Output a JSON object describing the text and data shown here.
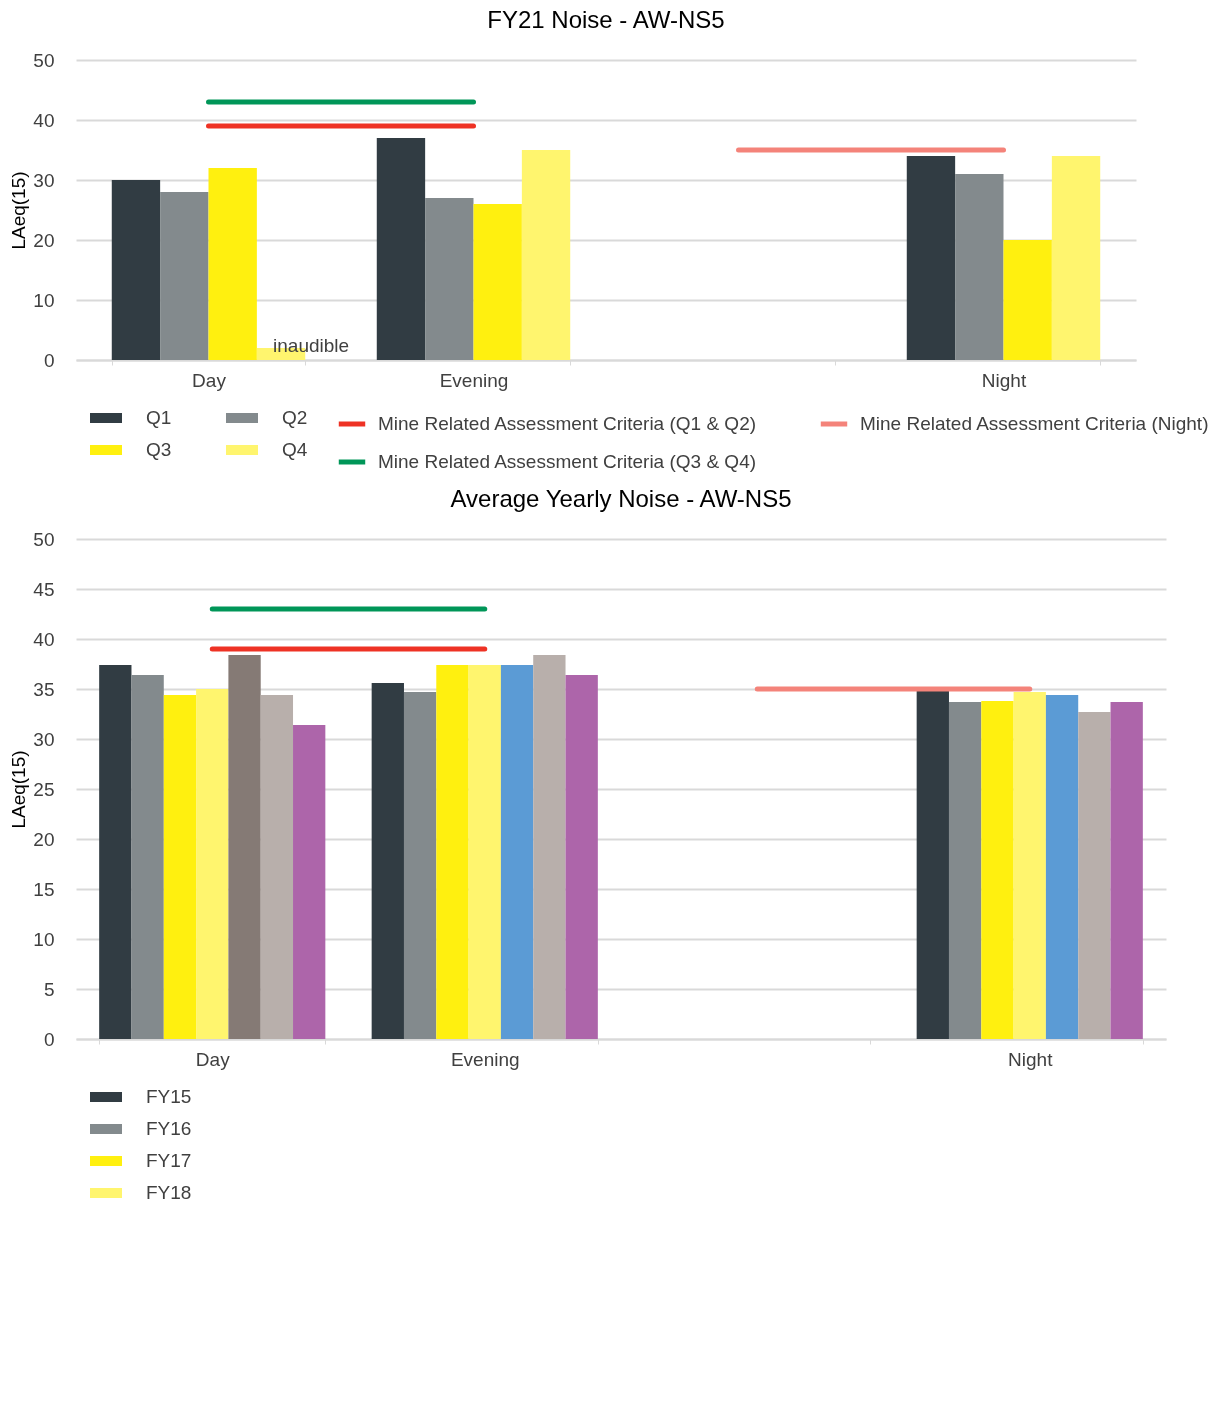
{
  "chart_data": [
    {
      "type": "bar",
      "title": "FY21 Noise - AW-NS5",
      "ylabel": "LAeq(15)",
      "categories": [
        "Day",
        "Evening",
        null,
        "Night"
      ],
      "ylim": [
        0,
        50
      ],
      "yticks": [
        0,
        10,
        20,
        30,
        40,
        50
      ],
      "grid": "y",
      "legend": "bottom",
      "series": [
        {
          "name": "Q1",
          "color": "#313c43",
          "values": [
            30,
            37,
            null,
            34
          ]
        },
        {
          "name": "Q2",
          "color": "#838a8d",
          "values": [
            28,
            27,
            null,
            31
          ]
        },
        {
          "name": "Q3",
          "color": "#fff00f",
          "values": [
            32,
            26,
            null,
            20
          ]
        },
        {
          "name": "Q4",
          "color": "#fff56e",
          "values": [
            2,
            35,
            null,
            34
          ],
          "value_labels": [
            "inaudible",
            null,
            null,
            null
          ]
        },
        {
          "name": "Mine Related Assessment Criteria (Q1 & Q2)",
          "type": "line",
          "color": "#ee3224",
          "values": [
            39,
            39,
            null,
            null
          ]
        },
        {
          "name": "Mine Related Assessment Criteria (Night)",
          "type": "line",
          "color": "#f4837a",
          "values": [
            null,
            null,
            35,
            35
          ]
        },
        {
          "name": "Mine Related Assessment Criteria (Q3 & Q4)",
          "type": "line",
          "color": "#009658",
          "values": [
            43,
            43,
            null,
            null
          ]
        }
      ]
    },
    {
      "type": "bar",
      "title": "Average Yearly Noise - AW-NS5",
      "ylabel": "LAeq(15)",
      "categories": [
        "Day",
        "Evening",
        null,
        "Night"
      ],
      "ylim": [
        0,
        50
      ],
      "yticks": [
        0,
        5,
        10,
        15,
        20,
        25,
        30,
        35,
        40,
        45,
        50
      ],
      "grid": "y",
      "legend": "bottom",
      "series": [
        {
          "name": "FY15",
          "color": "#313c43",
          "values": [
            37.4,
            35.6,
            null,
            34.8
          ]
        },
        {
          "name": "FY16",
          "color": "#838a8d",
          "values": [
            36.4,
            34.7,
            null,
            33.7
          ]
        },
        {
          "name": "FY17",
          "color": "#fff00f",
          "values": [
            34.4,
            37.4,
            null,
            33.8
          ]
        },
        {
          "name": "FY18",
          "color": "#fff56e",
          "values": [
            35,
            37.4,
            null,
            34.7
          ]
        },
        {
          "color": "#5b9bd5",
          "colors": [
            "#857a75",
            "#5b9bd5",
            "#5b9bd5",
            "#5b9bd5"
          ],
          "values": [
            38.4,
            37.4,
            null,
            34.4
          ]
        },
        {
          "color": "#b8afab",
          "values": [
            34.4,
            38.4,
            null,
            32.7
          ]
        },
        {
          "color": "#ad65aa",
          "values": [
            31.4,
            36.4,
            null,
            33.7
          ]
        },
        {
          "type": "line",
          "color": "#ee3224",
          "values": [
            39,
            39,
            null,
            null
          ]
        },
        {
          "type": "line",
          "color": "#f4837a",
          "values": [
            null,
            null,
            35,
            35
          ]
        },
        {
          "type": "line",
          "color": "#009658",
          "values": [
            43,
            43,
            null,
            null
          ]
        }
      ]
    }
  ]
}
